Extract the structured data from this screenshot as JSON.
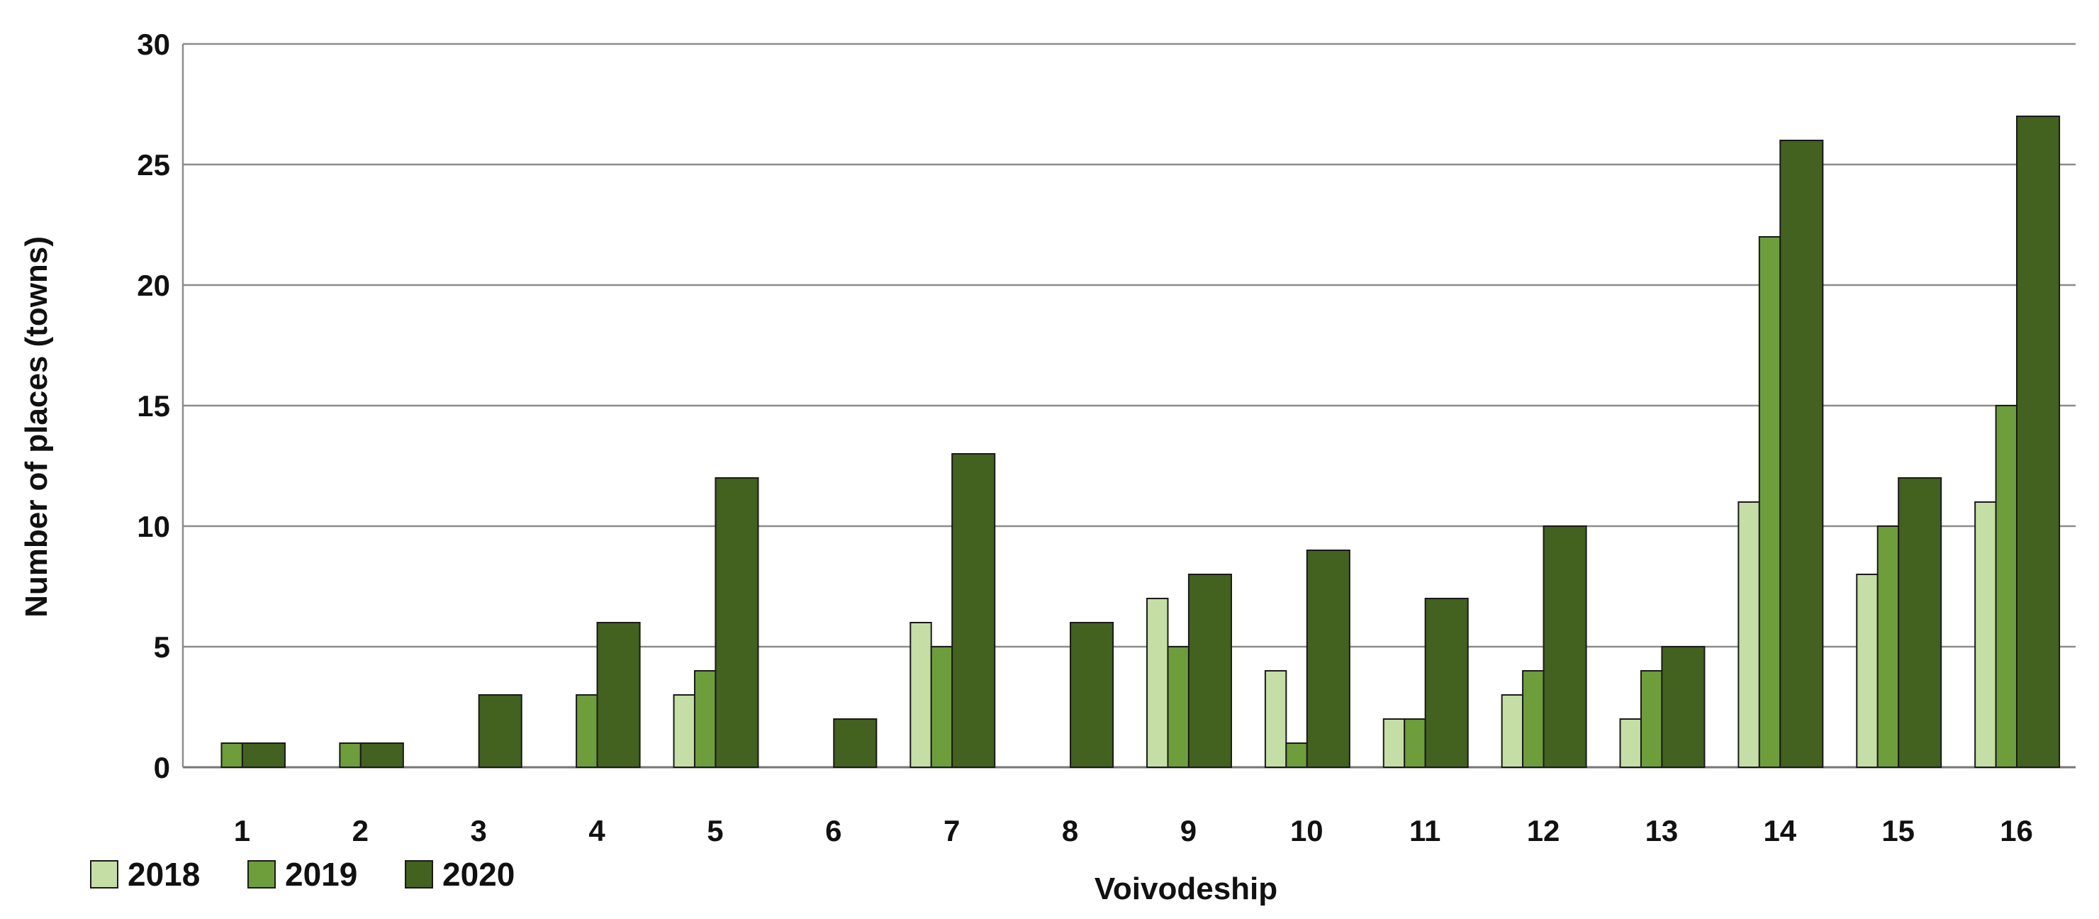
{
  "chart_data": {
    "type": "bar",
    "title": "",
    "xlabel": "Voivodeship",
    "ylabel": "Number of places (towns)",
    "categories": [
      "1",
      "2",
      "3",
      "4",
      "5",
      "6",
      "7",
      "8",
      "9",
      "10",
      "11",
      "12",
      "13",
      "14",
      "15",
      "16"
    ],
    "series": [
      {
        "name": "2018",
        "color": "#c5dea6",
        "values": [
          0,
          0,
          0,
          0,
          3,
          0,
          6,
          0,
          7,
          4,
          2,
          3,
          2,
          11,
          8,
          11
        ]
      },
      {
        "name": "2019",
        "color": "#6e9d3c",
        "values": [
          1,
          1,
          0,
          3,
          4,
          0,
          5,
          0,
          5,
          1,
          2,
          4,
          4,
          22,
          10,
          15
        ]
      },
      {
        "name": "2020",
        "color": "#43611f",
        "values": [
          1,
          1,
          3,
          6,
          12,
          2,
          13,
          6,
          8,
          9,
          7,
          10,
          5,
          26,
          12,
          27
        ]
      }
    ],
    "ylim": [
      0,
      30
    ],
    "yticks": [
      0,
      5,
      10,
      15,
      20,
      25,
      30
    ],
    "grid": true,
    "legend": "bottom-left"
  }
}
